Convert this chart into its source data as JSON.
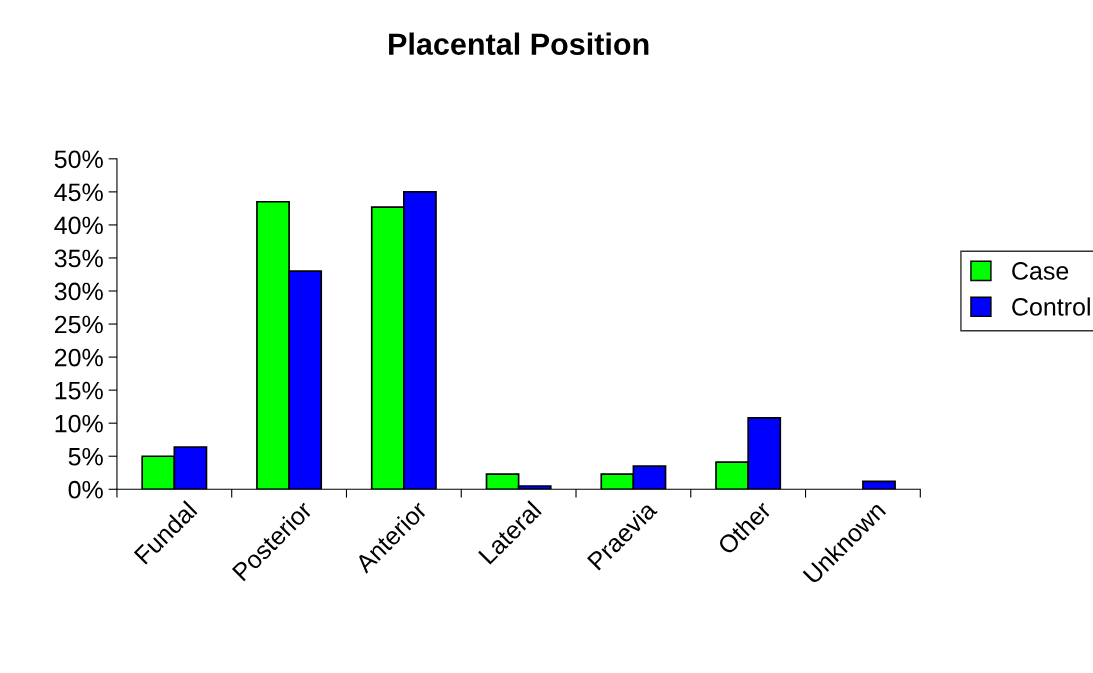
{
  "chart_data": {
    "type": "bar",
    "title": "Placental Position",
    "categories": [
      "Fundal",
      "Posterior",
      "Anterior",
      "Lateral",
      "Praevia",
      "Other",
      "Unknown"
    ],
    "series": [
      {
        "name": "Case",
        "color": "#00ff00",
        "values": [
          5.0,
          43.5,
          42.7,
          2.3,
          2.3,
          4.1,
          null
        ]
      },
      {
        "name": "Control",
        "color": "#0000ff",
        "values": [
          6.4,
          33.0,
          45.0,
          0.5,
          3.5,
          10.8,
          1.2
        ]
      }
    ],
    "ylim": [
      0,
      50
    ],
    "yticks": [
      {
        "value": 0,
        "label": "0%"
      },
      {
        "value": 5,
        "label": "5%"
      },
      {
        "value": 10,
        "label": "10%"
      },
      {
        "value": 15,
        "label": "15%"
      },
      {
        "value": 20,
        "label": "20%"
      },
      {
        "value": 25,
        "label": "25%"
      },
      {
        "value": 30,
        "label": "30%"
      },
      {
        "value": 35,
        "label": "35%"
      },
      {
        "value": 40,
        "label": "40%"
      },
      {
        "value": 45,
        "label": "45%"
      },
      {
        "value": 50,
        "label": "50%"
      }
    ],
    "grid": false,
    "legend": "right"
  }
}
